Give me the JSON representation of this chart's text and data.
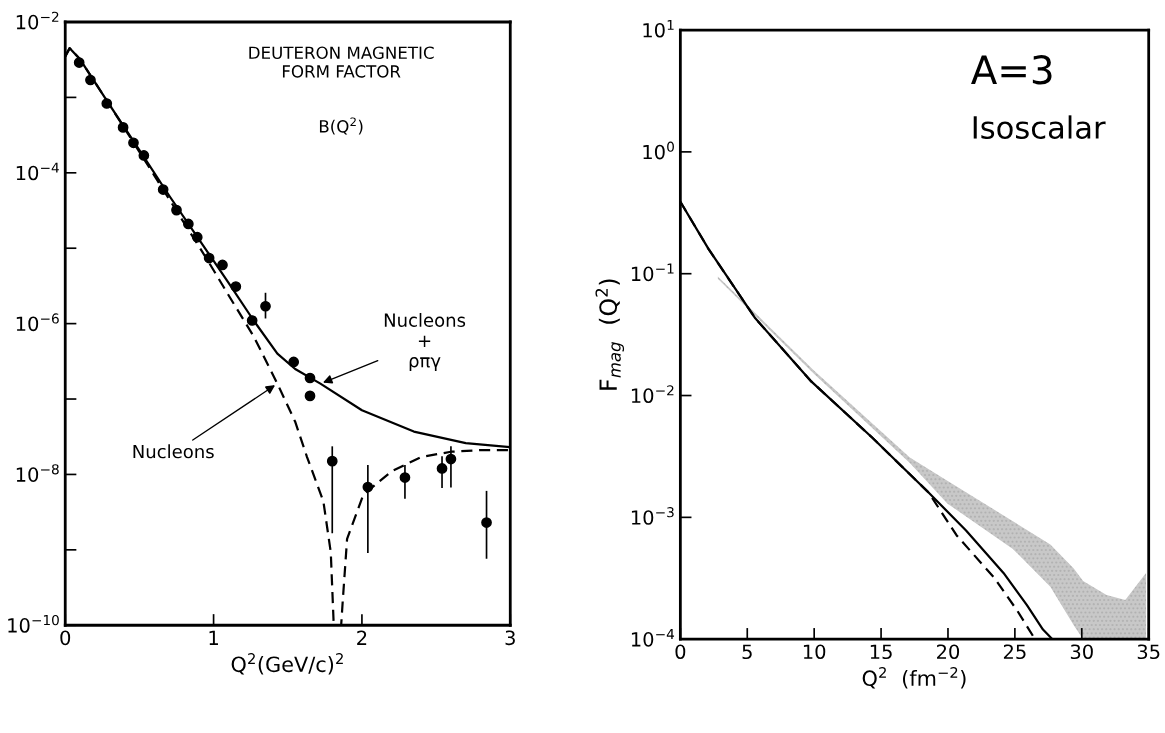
{
  "chart_data": [
    {
      "type": "line",
      "title": "DEUTERON MAGNETIC\nFORM FACTOR",
      "subtitle": "B(Q$^{2}$)",
      "xlabel": "Q$^{2}$(GeV/c)$^{2}$",
      "log": "y",
      "xlim": [
        0,
        3
      ],
      "ylim": [
        1e-10,
        0.01
      ],
      "xticks": [
        0,
        1,
        2,
        3
      ],
      "yticks": [
        {
          "value": 0.01,
          "label": "10$^{−2}$"
        },
        {
          "value": 0.001,
          "label": null
        },
        {
          "value": 0.0001,
          "label": "10$^{−4}$"
        },
        {
          "value": 1e-05,
          "label": null
        },
        {
          "value": 1e-06,
          "label": "10$^{−6}$"
        },
        {
          "value": 1e-07,
          "label": null
        },
        {
          "value": 1e-08,
          "label": "10$^{−8}$"
        },
        {
          "value": 1e-09,
          "label": null
        },
        {
          "value": 1e-10,
          "label": "10$^{−10}$"
        }
      ],
      "grid": false,
      "annotations": [
        {
          "text": "Nucleons\n+\nρπγ",
          "x": 1.72,
          "y": 1.6e-07
        },
        {
          "text": "Nucleons",
          "x": 1.43,
          "y": 1.6e-07
        }
      ],
      "series": [
        {
          "type": "scatter",
          "marker": "circle",
          "color": "#000000",
          "x": [
            0.094,
            0.17,
            0.28,
            0.39,
            0.46,
            0.53,
            0.66,
            0.75,
            0.83,
            0.89,
            0.97,
            1.06,
            1.15,
            1.26,
            1.35,
            1.54,
            1.65,
            1.65,
            1.8,
            2.04,
            2.29,
            2.54,
            2.6,
            2.84
          ],
          "values": [
            0.0029,
            0.0017,
            0.00083,
            0.0004,
            0.00025,
            0.00017,
            6e-05,
            3.2e-05,
            2.1e-05,
            1.4e-05,
            7.4e-06,
            6e-06,
            3.1e-06,
            1.1e-06,
            1.7e-06,
            3.1e-07,
            1.9e-07,
            1.1e-07,
            1.5e-08,
            6.8e-09,
            9.1e-09,
            1.2e-08,
            1.6e-08,
            2.3e-09
          ],
          "errors": [
            null,
            null,
            null,
            null,
            null,
            null,
            null,
            null,
            null,
            null,
            null,
            null,
            null,
            null,
            [
              1.2e-06,
              2.5e-06
            ],
            null,
            null,
            null,
            [
              1.7e-09,
              2.3e-08
            ],
            [
              9.3e-10,
              1.3e-08
            ],
            [
              4.9e-09,
              1.3e-08
            ],
            [
              6.8e-09,
              1.7e-08
            ],
            [
              6.9e-09,
              2.3e-08
            ],
            [
              7.8e-10,
              5.9e-09
            ]
          ]
        },
        {
          "line_style": "solid",
          "color": "#000000",
          "x": [
            0,
            0.03,
            0.1,
            0.3,
            0.5,
            0.7,
            0.96,
            1.1,
            1.27,
            1.43,
            1.55,
            1.72,
            2.0,
            2.35,
            2.7,
            3.0
          ],
          "values": [
            0.0035,
            0.0045,
            0.0032,
            0.00079,
            0.0002,
            5e-05,
            8.9e-06,
            3.5e-06,
            1.1e-06,
            4e-07,
            2.5e-07,
            1.6e-07,
            7.1e-08,
            3.7e-08,
            2.6e-08,
            2.3e-08
          ]
        },
        {
          "line_style": "dashed",
          "color": "#000000",
          "x": [
            0,
            0.03,
            0.1,
            0.3,
            0.5,
            0.7,
            0.96,
            1.1,
            1.27,
            1.43,
            1.55,
            1.63,
            1.74,
            1.79,
            1.81,
            1.86,
            1.87,
            1.9,
            2.01,
            2.2,
            2.4,
            2.6,
            2.8,
            3.0
          ],
          "values": [
            0.0035,
            0.0045,
            0.0032,
            0.00079,
            0.00019,
            4.5e-05,
            6.9e-06,
            2.4e-06,
            6.8e-07,
            1.6e-07,
            5e-08,
            1.7e-08,
            4.4e-09,
            9.3e-10,
            1e-10,
            1e-10,
            2e-10,
            1.4e-09,
            5.4e-09,
            1.1e-08,
            1.7e-08,
            2e-08,
            2.1e-08,
            2.1e-08
          ]
        }
      ]
    },
    {
      "type": "line",
      "title": "A=3",
      "subtitle": "Isoscalar",
      "xlabel": "Q$^{2}$  (fm$^{−2}$)",
      "ylabel": "F$_{mag}$  (Q$^{2}$)",
      "log": "y",
      "xlim": [
        0,
        35
      ],
      "ylim": [
        0.0001,
        10
      ],
      "xticks": [
        0,
        5,
        10,
        15,
        20,
        25,
        30,
        35
      ],
      "yticks": [
        {
          "value": 10,
          "label": "10$^{1}$"
        },
        {
          "value": 1,
          "label": "10$^{0}$"
        },
        {
          "value": 0.1,
          "label": "10$^{−1}$"
        },
        {
          "value": 0.01,
          "label": "10$^{−2}$"
        },
        {
          "value": 0.001,
          "label": "10$^{−3}$"
        },
        {
          "value": 0.0001,
          "label": "10$^{−4}$"
        }
      ],
      "grid": false,
      "series": [
        {
          "type": "area",
          "color": "#b0b0b0",
          "x": [
            2.8,
            10,
            17.15,
            19.95,
            24.85,
            27.65,
            29.4,
            30.1,
            31.85,
            33.25,
            34.8
          ],
          "values": [
            null,
            null,
            null,
            null,
            null,
            null,
            null,
            null,
            null,
            null,
            null
          ],
          "upper": [
            0.095,
            0.016,
            0.0031,
            0.002,
            0.00093,
            0.0006,
            0.00038,
            0.0003,
            0.00023,
            0.00021,
            0.00035
          ],
          "lower": [
            0.091,
            0.015,
            0.0028,
            0.0013,
            0.00055,
            0.00027,
            0.00013,
            0.0001,
            0.0001,
            0.0001,
            0.0001
          ]
        },
        {
          "line_style": "solid",
          "color": "#000000",
          "x": [
            0,
            2.1,
            5.6,
            9.8,
            14.35,
            18.55,
            21.35,
            24.15,
            25.9,
            27.1,
            27.8
          ],
          "values": [
            0.39,
            0.16,
            0.043,
            0.013,
            0.0045,
            0.0016,
            0.00078,
            0.00035,
            0.00019,
            0.00012,
            0.0001
          ]
        },
        {
          "line_style": "dashed",
          "color": "#000000",
          "x": [
            0,
            2.1,
            5.6,
            9.8,
            14.35,
            18.55,
            20.65,
            23.45,
            25.2,
            26.5
          ],
          "values": [
            0.39,
            0.16,
            0.043,
            0.013,
            0.0045,
            0.0016,
            0.00071,
            0.00032,
            0.00017,
            0.0001
          ]
        }
      ]
    }
  ]
}
